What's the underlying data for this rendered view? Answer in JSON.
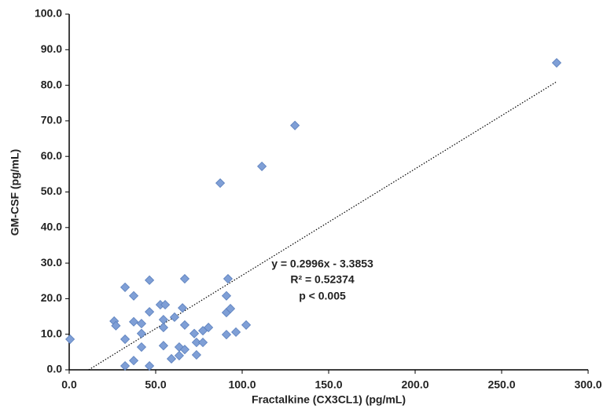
{
  "chart_data": {
    "type": "scatter",
    "x_label": "Fractalkine (CX3CL1) (pg/mL)",
    "y_label": "GM-CSF (pg/mL)",
    "annotations": [
      "y = 0.2996x - 3.3853",
      "R² = 0.52374",
      "p < 0.005"
    ],
    "color": "#7f9fd6",
    "xlim": [
      0,
      300
    ],
    "ylim": [
      0,
      100
    ],
    "xticks": [
      {
        "value": 0,
        "label": "0.0"
      },
      {
        "value": 50,
        "label": "50.0"
      },
      {
        "value": 100,
        "label": "100.0"
      },
      {
        "value": 150,
        "label": "150.0"
      },
      {
        "value": 200,
        "label": "200.0"
      },
      {
        "value": 250,
        "label": "250.0"
      },
      {
        "value": 300,
        "label": "300.0"
      }
    ],
    "yticks": [
      {
        "value": 0,
        "label": "0.0"
      },
      {
        "value": 10,
        "label": "10.0"
      },
      {
        "value": 20,
        "label": "20.0"
      },
      {
        "value": 30,
        "label": "30.0"
      },
      {
        "value": 40,
        "label": "40.0"
      },
      {
        "value": 50,
        "label": "50.0"
      },
      {
        "value": 60,
        "label": "60.0"
      },
      {
        "value": 70,
        "label": "70.0"
      },
      {
        "value": 80,
        "label": "80.0"
      },
      {
        "value": 90,
        "label": "90.0"
      },
      {
        "value": 100,
        "label": "100.0"
      }
    ],
    "x": [
      0.5,
      26,
      27,
      32.3,
      32.3,
      32.3,
      37.3,
      37.3,
      37.3,
      41.8,
      41.8,
      41.8,
      46.4,
      46.4,
      46.4,
      52.7,
      55.5,
      54.5,
      54.5,
      54.5,
      59.1,
      60.9,
      63.6,
      63.6,
      65.5,
      66.8,
      66.8,
      66.8,
      72.3,
      73.6,
      73.6,
      77.3,
      77.3,
      80.5,
      87.3,
      91.8,
      90.9,
      90.9,
      93.2,
      90.9,
      96.4,
      102.3,
      111.4,
      130.5,
      281.8
    ],
    "values": [
      8.6,
      13.7,
      12.4,
      23.2,
      8.6,
      1.1,
      20.8,
      13.5,
      2.6,
      13.0,
      10.2,
      6.4,
      25.2,
      16.3,
      1.1,
      18.3,
      18.3,
      14.1,
      11.9,
      6.8,
      3.1,
      14.8,
      6.4,
      4.0,
      17.4,
      25.6,
      12.6,
      5.7,
      10.2,
      7.7,
      4.2,
      11.0,
      7.7,
      11.9,
      52.5,
      25.6,
      20.8,
      16.1,
      17.2,
      9.9,
      10.6,
      12.6,
      57.2,
      68.7,
      86.3
    ],
    "trendline": {
      "x": [
        11.3,
        281.8
      ],
      "y": [
        0,
        81
      ]
    }
  }
}
